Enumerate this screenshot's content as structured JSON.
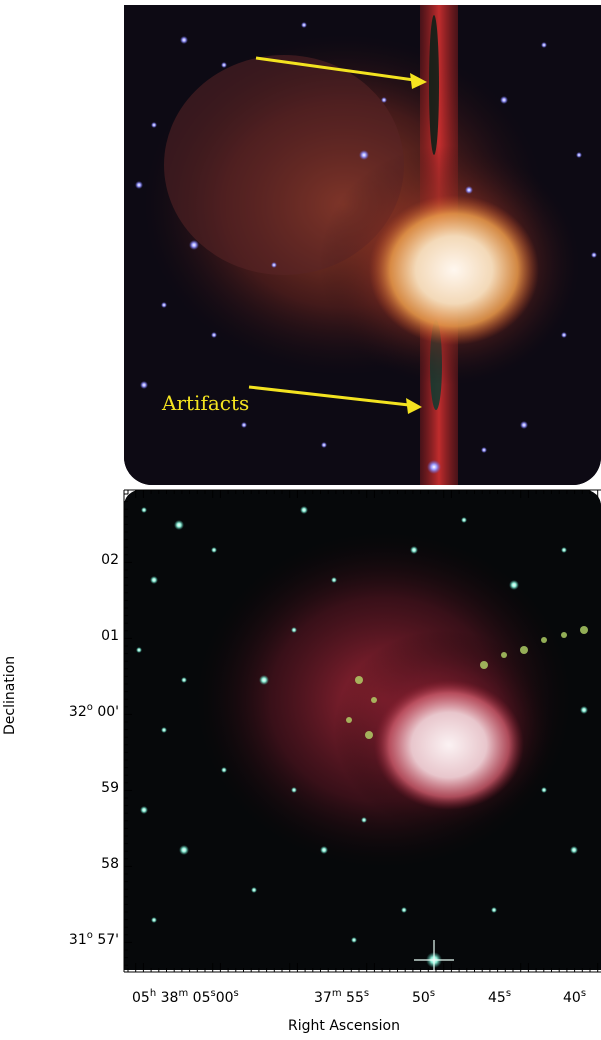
{
  "annotation": {
    "text": "Artifacts",
    "color": "#f3e320"
  },
  "axes": {
    "y_title": "Declination",
    "x_title": "Right Ascension",
    "dec_labels": [
      {
        "main": "02",
        "deg": "",
        "unit": ""
      },
      {
        "main": "01",
        "deg": "",
        "unit": ""
      },
      {
        "main": "32",
        "deg": "o",
        "unit": "00'"
      },
      {
        "main": "59",
        "deg": "",
        "unit": ""
      },
      {
        "main": "58",
        "deg": "",
        "unit": ""
      },
      {
        "main": "31",
        "deg": "o",
        "unit": "57'"
      }
    ],
    "ra_labels": [
      {
        "text": "05",
        "sup": "h"
      },
      {
        "text": "38",
        "sup": "m"
      },
      {
        "text": "05",
        "sup": "s"
      },
      {
        "text": "00",
        "sup": "s"
      },
      {
        "text": "37",
        "sup": "m"
      },
      {
        "text": "55",
        "sup": "s"
      },
      {
        "text": "50",
        "sup": "s"
      },
      {
        "text": "45",
        "sup": "s"
      },
      {
        "text": "40",
        "sup": "s"
      }
    ]
  },
  "colors": {
    "nebula_core": "#fff3e8",
    "nebula_glow": "#d8582e",
    "artifact_band": "#c62a2a",
    "bottom_glow": "#b8283a",
    "star_top": "#8c8cff",
    "star_bottom": "#7fe6cf"
  }
}
